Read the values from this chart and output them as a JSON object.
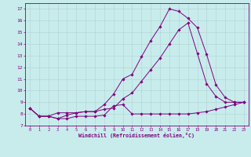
{
  "xlabel": "Windchill (Refroidissement éolien,°C)",
  "bg_color": "#c8ecec",
  "line_color": "#800080",
  "grid_color": "#b0d0d0",
  "xlim": [
    -0.5,
    23.5
  ],
  "ylim": [
    7,
    17.5
  ],
  "xticks": [
    0,
    1,
    2,
    3,
    4,
    5,
    6,
    7,
    8,
    9,
    10,
    11,
    12,
    13,
    14,
    15,
    16,
    17,
    18,
    19,
    20,
    21,
    22,
    23
  ],
  "yticks": [
    7,
    8,
    9,
    10,
    11,
    12,
    13,
    14,
    15,
    16,
    17
  ],
  "line1_x": [
    0,
    1,
    2,
    3,
    4,
    5,
    6,
    7,
    8,
    9,
    10,
    11,
    12,
    13,
    14,
    15,
    16,
    17,
    18,
    19,
    20,
    21,
    22,
    23
  ],
  "line1_y": [
    8.5,
    7.8,
    7.8,
    7.6,
    7.6,
    7.8,
    7.8,
    7.8,
    7.9,
    8.7,
    8.8,
    8.0,
    8.0,
    8.0,
    8.0,
    8.0,
    8.0,
    8.0,
    8.1,
    8.2,
    8.4,
    8.6,
    8.8,
    9.0
  ],
  "line2_x": [
    0,
    1,
    2,
    3,
    4,
    5,
    6,
    7,
    8,
    9,
    10,
    11,
    12,
    13,
    14,
    15,
    16,
    17,
    18,
    19,
    20,
    21,
    22,
    23
  ],
  "line2_y": [
    8.5,
    7.8,
    7.8,
    7.6,
    7.9,
    8.1,
    8.2,
    8.2,
    8.8,
    9.7,
    11.0,
    11.4,
    12.9,
    14.3,
    15.5,
    17.0,
    16.8,
    16.2,
    15.4,
    13.1,
    10.5,
    9.4,
    9.0,
    9.0
  ],
  "line3_x": [
    0,
    1,
    2,
    3,
    4,
    5,
    6,
    7,
    8,
    9,
    10,
    11,
    12,
    13,
    14,
    15,
    16,
    17,
    18,
    19,
    20,
    21,
    22,
    23
  ],
  "line3_y": [
    8.5,
    7.8,
    7.8,
    8.1,
    8.1,
    8.1,
    8.2,
    8.2,
    8.4,
    8.5,
    9.3,
    9.8,
    10.8,
    11.8,
    12.8,
    14.0,
    15.2,
    15.8,
    13.2,
    10.6,
    9.5,
    9.0,
    9.0,
    9.0
  ]
}
